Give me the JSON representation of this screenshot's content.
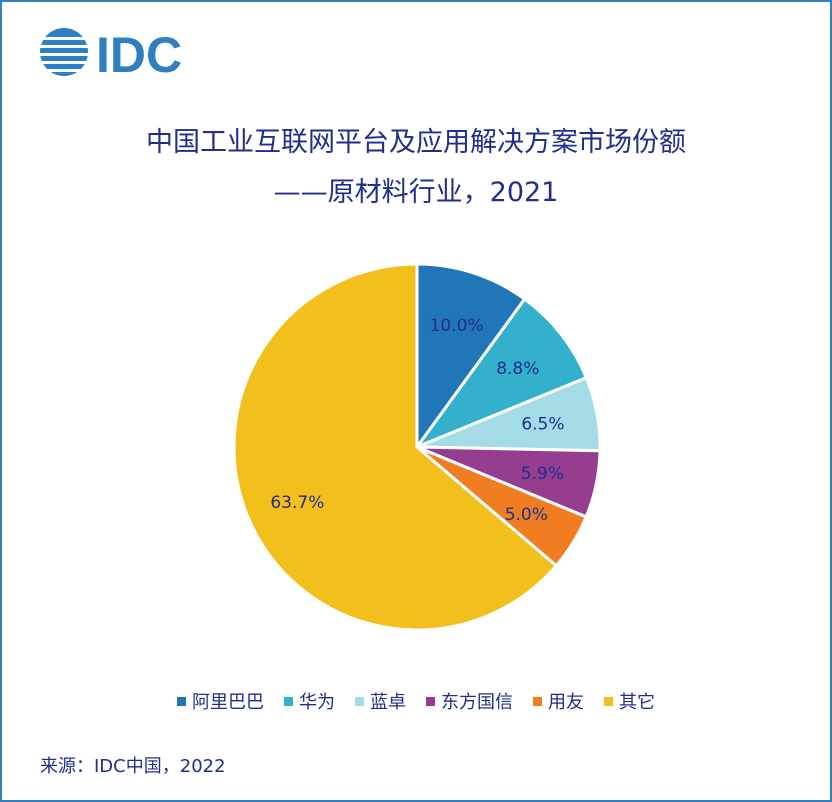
{
  "logo": {
    "text": "IDC"
  },
  "chart_data": {
    "type": "pie",
    "title": "中国工业互联网平台及应用解决方案市场份额",
    "subtitle": "——原材料行业，2021",
    "slices": [
      {
        "name": "阿里巴巴",
        "value": 10.0,
        "label": "10.0%",
        "color": "#2176b8"
      },
      {
        "name": "华为",
        "value": 8.8,
        "label": "8.8%",
        "color": "#33b1cc"
      },
      {
        "name": "蓝卓",
        "value": 6.5,
        "label": "6.5%",
        "color": "#a3dce6"
      },
      {
        "name": "东方国信",
        "value": 5.9,
        "label": "5.9%",
        "color": "#953d8e"
      },
      {
        "name": "用友",
        "value": 5.0,
        "label": "5.0%",
        "color": "#f07d22"
      },
      {
        "name": "其它",
        "value": 63.7,
        "label": "63.7%",
        "color": "#f2bf1d"
      }
    ],
    "legend_position": "bottom"
  },
  "source": "来源：IDC中国，2022"
}
